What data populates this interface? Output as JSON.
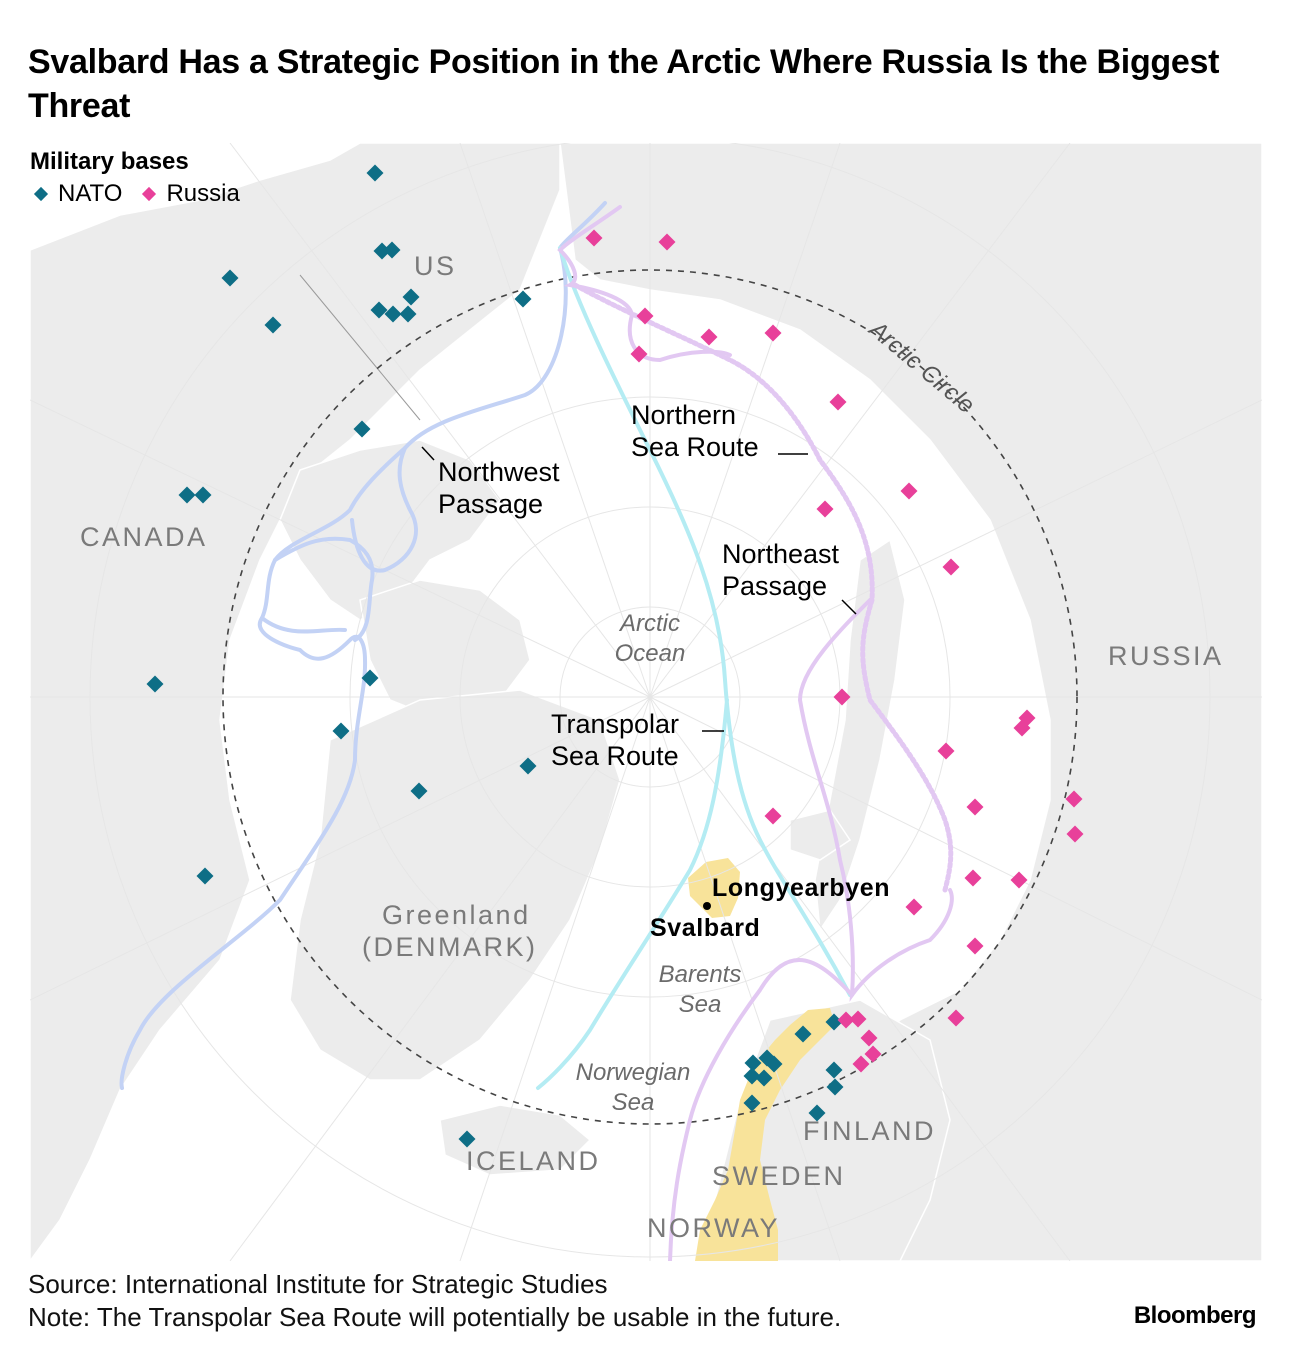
{
  "title": "Svalbard Has a Strategic Position in the Arctic Where Russia Is the Biggest Threat",
  "legend": {
    "title": "Military bases",
    "nato_label": "NATO",
    "russia_label": "Russia",
    "nato_color": "#0e6e86",
    "russia_color": "#e8409a"
  },
  "countries": {
    "us": "US",
    "canada": "CANADA",
    "greenland": "Greenland",
    "denmark": "(DENMARK)",
    "iceland": "ICELAND",
    "russia": "RUSSIA",
    "finland": "FINLAND",
    "sweden": "SWEDEN",
    "norway": "NORWAY"
  },
  "seas": {
    "arctic_1": "Arctic",
    "arctic_2": "Ocean",
    "barents_1": "Barents",
    "barents_2": "Sea",
    "norwegian_1": "Norwegian",
    "norwegian_2": "Sea"
  },
  "circle_label": "Arctic Circle",
  "routes": {
    "northwest_1": "Northwest",
    "northwest_2": "Passage",
    "northern_1": "Northern",
    "northern_2": "Sea Route",
    "northeast_1": "Northeast",
    "northeast_2": "Passage",
    "transpolar_1": "Transpolar",
    "transpolar_2": "Sea Route",
    "colors": {
      "northwest": "#c3d2f5",
      "northern_sea": "#b4ecf3",
      "northeast": "#e2c8f2"
    }
  },
  "places": {
    "longyearbyen": "Longyearbyen",
    "svalbard": "Svalbard"
  },
  "footer": {
    "source": "Source: International Institute for Strategic Studies",
    "note": "Note: The Transpolar Sea Route will potentially be usable in the future."
  },
  "brand": "Bloomberg",
  "colors": {
    "land": "#ececec",
    "svalbard_norway": "#f8e39a",
    "ocean": "#ffffff"
  }
}
